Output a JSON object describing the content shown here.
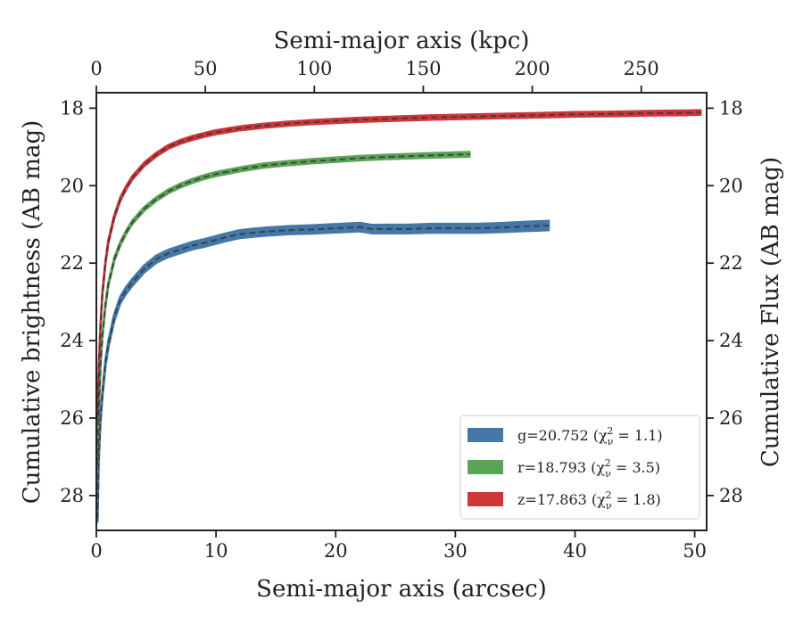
{
  "chart_data": {
    "type": "line",
    "title": "",
    "xlabel": "Semi-major axis (arcsec)",
    "xlabel_top": "Semi-major axis (kpc)",
    "ylabel": "Cumulative brightness (AB mag)",
    "ylabel_right": "Cumulative Flux (AB mag)",
    "xlim": [
      0,
      51
    ],
    "xlim_top": [
      0,
      280
    ],
    "ylim": [
      17.6,
      28.9
    ],
    "y_inverted": true,
    "x_ticks": [
      0,
      10,
      20,
      30,
      40,
      50
    ],
    "x_ticks_top": [
      0,
      50,
      100,
      150,
      200,
      250
    ],
    "y_ticks": [
      18,
      20,
      22,
      24,
      26,
      28
    ],
    "grid": false,
    "legend_position": "lower-right",
    "series": [
      {
        "name": "g=20.752",
        "chi_label": "(χ",
        "chi_sub": "ν",
        "chi_sup": "2",
        "chi_value": " = 1.1)",
        "color": "#4378a8",
        "band_width": [
          0.08,
          0.12
        ],
        "x": [
          0.1,
          0.2,
          0.35,
          0.5,
          0.75,
          1.0,
          1.5,
          2.0,
          2.5,
          3.0,
          4.0,
          5.0,
          6.0,
          7.0,
          8.0,
          9.0,
          10.0,
          11.0,
          12.0,
          13.0,
          14.0,
          16.0,
          18.0,
          20.0,
          22.0,
          23.0,
          24.0,
          26.0,
          28.0,
          30.0,
          32.0,
          34.0,
          36.0,
          37.8
        ],
        "y": [
          28.6,
          27.0,
          26.0,
          25.4,
          24.6,
          24.1,
          23.4,
          22.95,
          22.7,
          22.5,
          22.15,
          21.9,
          21.75,
          21.65,
          21.55,
          21.48,
          21.4,
          21.32,
          21.25,
          21.22,
          21.19,
          21.15,
          21.13,
          21.1,
          21.07,
          21.12,
          21.12,
          21.12,
          21.1,
          21.1,
          21.1,
          21.08,
          21.05,
          21.03
        ]
      },
      {
        "name": "r=18.793",
        "chi_label": "(χ",
        "chi_sub": "ν",
        "chi_sup": "2",
        "chi_value": " = 3.5)",
        "color": "#5aa457",
        "band_width": [
          0.04,
          0.06
        ],
        "x": [
          0.1,
          0.2,
          0.35,
          0.5,
          0.75,
          1.0,
          1.5,
          2.0,
          2.5,
          3.0,
          4.0,
          5.0,
          6.0,
          7.0,
          8.0,
          9.0,
          10.0,
          12.0,
          14.0,
          16.0,
          18.0,
          20.0,
          22.0,
          24.0,
          26.0,
          28.0,
          30.0,
          31.2
        ],
        "y": [
          27.2,
          25.8,
          24.6,
          23.9,
          23.1,
          22.55,
          21.9,
          21.5,
          21.2,
          20.95,
          20.6,
          20.35,
          20.15,
          20.0,
          19.88,
          19.78,
          19.7,
          19.58,
          19.48,
          19.42,
          19.37,
          19.33,
          19.29,
          19.26,
          19.24,
          19.22,
          19.2,
          19.19
        ]
      },
      {
        "name": "z=17.863",
        "chi_label": "(χ",
        "chi_sub": "ν",
        "chi_sup": "2",
        "chi_value": " = 1.8)",
        "color": "#d0353a",
        "band_width": [
          0.04,
          0.06
        ],
        "x": [
          0.1,
          0.2,
          0.35,
          0.5,
          0.75,
          1.0,
          1.5,
          2.0,
          2.5,
          3.0,
          4.0,
          5.0,
          6.0,
          7.0,
          8.0,
          9.0,
          10.0,
          12.0,
          14.0,
          16.0,
          18.0,
          20.0,
          22.0,
          25.0,
          28.0,
          31.0,
          34.0,
          37.0,
          40.0,
          43.0,
          46.0,
          49.0,
          50.5
        ],
        "y": [
          26.0,
          24.7,
          23.6,
          22.8,
          22.0,
          21.45,
          20.8,
          20.35,
          20.05,
          19.8,
          19.45,
          19.2,
          19.0,
          18.87,
          18.77,
          18.69,
          18.62,
          18.52,
          18.45,
          18.4,
          18.36,
          18.33,
          18.3,
          18.27,
          18.24,
          18.22,
          18.2,
          18.18,
          18.16,
          18.15,
          18.13,
          18.12,
          18.11
        ]
      }
    ]
  }
}
